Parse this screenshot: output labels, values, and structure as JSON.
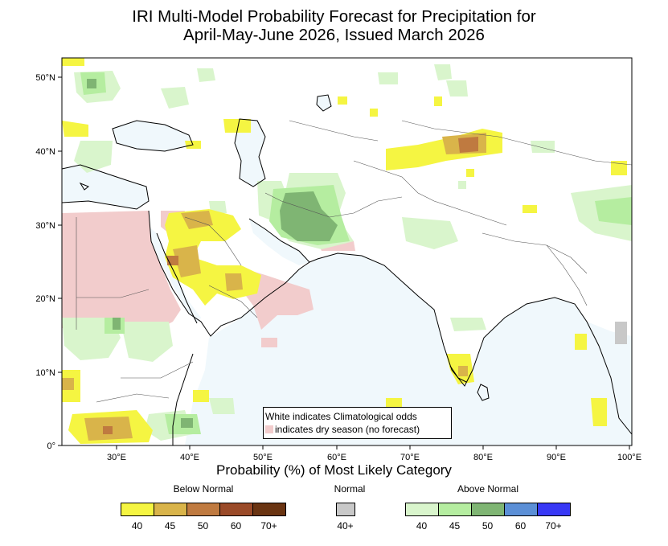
{
  "title_line1": "IRI Multi-Model Probability Forecast for Precipitation for",
  "title_line2": "April-May-June 2026, Issued March 2026",
  "subtitle": "Probability (%) of Most Likely Category",
  "lat_labels": [
    "50°N",
    "40°N",
    "30°N",
    "20°N",
    "10°N",
    "0°"
  ],
  "lon_labels": [
    "30°E",
    "40°E",
    "50°E",
    "60°E",
    "70°E",
    "80°E",
    "90°E",
    "100°E"
  ],
  "note_line1": "White indicates Climatological odds",
  "note_line2": "indicates dry season (no forecast)",
  "legend": {
    "below": {
      "label": "Below Normal",
      "colors": [
        "#f5f542",
        "#d9b44a",
        "#bf7a40",
        "#9a4a28",
        "#6a3412"
      ],
      "values": [
        "40",
        "45",
        "50",
        "60",
        "70+"
      ]
    },
    "normal": {
      "label": "Normal",
      "colors": [
        "#c8c8c8"
      ],
      "values": [
        "40+"
      ]
    },
    "above": {
      "label": "Above Normal",
      "colors": [
        "#d9f5cc",
        "#b5eda0",
        "#7fb573",
        "#5b8fd6",
        "#3838f5"
      ],
      "values": [
        "40",
        "45",
        "50",
        "60",
        "70+"
      ]
    }
  },
  "colors": {
    "dry_season": "#f2cccc",
    "ocean": "#f0f8fc",
    "land": "#ffffff"
  }
}
